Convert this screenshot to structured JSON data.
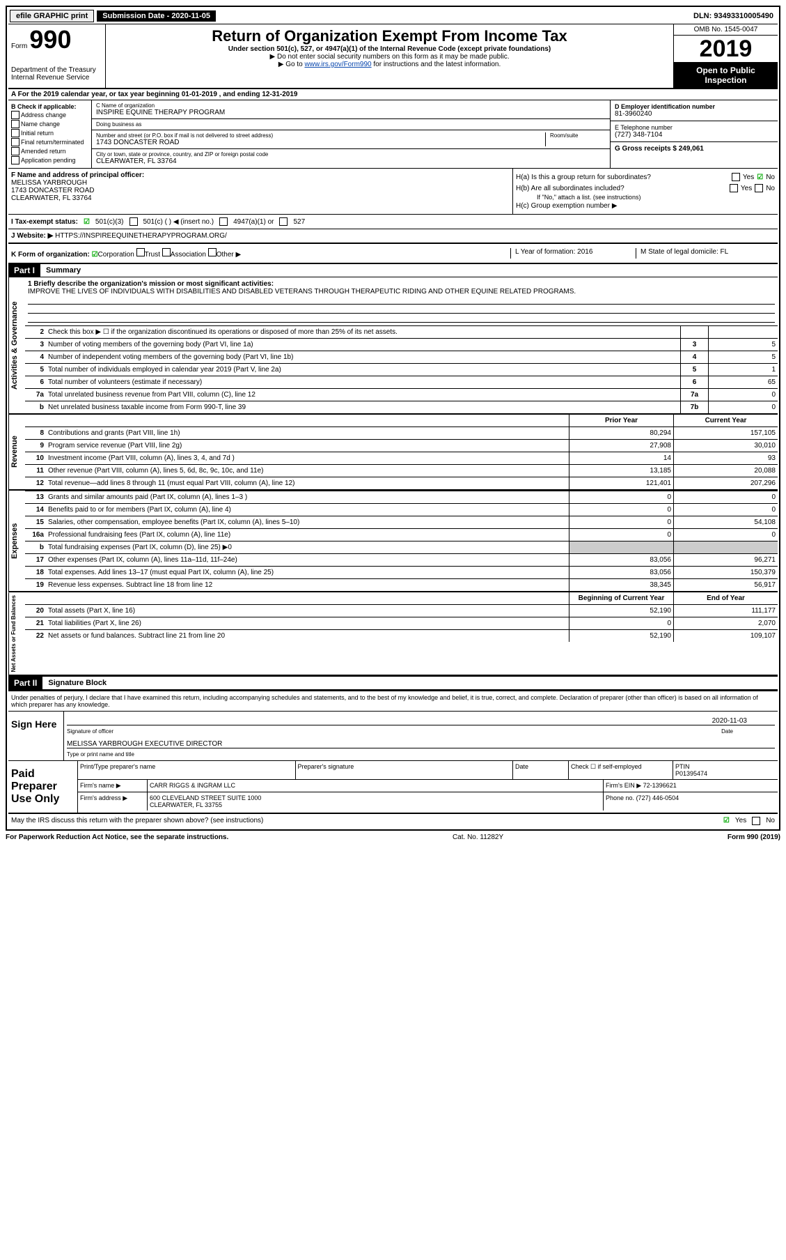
{
  "topbar": {
    "efile": "efile GRAPHIC print",
    "submission_label": "Submission Date - 2020-11-05",
    "dln": "DLN: 93493310005490"
  },
  "header": {
    "form_prefix": "Form",
    "form_number": "990",
    "dept": "Department of the Treasury",
    "irs": "Internal Revenue Service",
    "title": "Return of Organization Exempt From Income Tax",
    "subtitle": "Under section 501(c), 527, or 4947(a)(1) of the Internal Revenue Code (except private foundations)",
    "instr1": "▶ Do not enter social security numbers on this form as it may be made public.",
    "instr2_pre": "▶ Go to ",
    "instr2_link": "www.irs.gov/Form990",
    "instr2_post": " for instructions and the latest information.",
    "omb": "OMB No. 1545-0047",
    "year": "2019",
    "open": "Open to Public Inspection"
  },
  "sectionA": "A For the 2019 calendar year, or tax year beginning 01-01-2019    , and ending 12-31-2019",
  "colB": {
    "label": "B Check if applicable:",
    "items": [
      "Address change",
      "Name change",
      "Initial return",
      "Final return/terminated",
      "Amended return",
      "Application pending"
    ]
  },
  "colC": {
    "name_label": "C Name of organization",
    "name": "INSPIRE EQUINE THERAPY PROGRAM",
    "dba_label": "Doing business as",
    "addr_label": "Number and street (or P.O. box if mail is not delivered to street address)",
    "room_label": "Room/suite",
    "addr": "1743 DONCASTER ROAD",
    "city_label": "City or town, state or province, country, and ZIP or foreign postal code",
    "city": "CLEARWATER, FL  33764"
  },
  "colDE": {
    "d_label": "D Employer identification number",
    "d_val": "81-3960240",
    "e_label": "E Telephone number",
    "e_val": "(727) 348-7104",
    "g_label": "G Gross receipts $ 249,061"
  },
  "rowF": {
    "f_label": "F  Name and address of principal officer:",
    "f_name": "MELISSA YARBROUGH",
    "f_addr1": "1743 DONCASTER ROAD",
    "f_addr2": "CLEARWATER, FL  33764",
    "ha": "H(a)  Is this a group return for subordinates?",
    "hb": "H(b)  Are all subordinates included?",
    "hb_note": "If \"No,\" attach a list. (see instructions)",
    "hc": "H(c)  Group exemption number ▶",
    "yes": "Yes",
    "no": "No"
  },
  "rowI": {
    "label": "I  Tax-exempt status:",
    "c3": "501(c)(3)",
    "c": "501(c) (  ) ◀ (insert no.)",
    "a1": "4947(a)(1) or",
    "s527": "527"
  },
  "rowJ": {
    "label": "J  Website: ▶",
    "val": "HTTPS://INSPIREEQUINETHERAPYPROGRAM.ORG/"
  },
  "rowK": {
    "label": "K Form of organization:",
    "corp": "Corporation",
    "trust": "Trust",
    "assoc": "Association",
    "other": "Other ▶",
    "l_label": "L Year of formation: 2016",
    "m_label": "M State of legal domicile: FL"
  },
  "part1": {
    "header": "Part I",
    "title": "Summary"
  },
  "mission": {
    "label": "1  Briefly describe the organization's mission or most significant activities:",
    "text": "IMPROVE THE LIVES OF INDIVIDUALS WITH DISABILITIES AND DISABLED VETERANS THROUGH THERAPEUTIC RIDING AND OTHER EQUINE RELATED PROGRAMS."
  },
  "gov_lines": [
    {
      "n": "2",
      "d": "Check this box ▶ ☐  if the organization discontinued its operations or disposed of more than 25% of its net assets.",
      "box": "",
      "v": ""
    },
    {
      "n": "3",
      "d": "Number of voting members of the governing body (Part VI, line 1a)",
      "box": "3",
      "v": "5"
    },
    {
      "n": "4",
      "d": "Number of independent voting members of the governing body (Part VI, line 1b)",
      "box": "4",
      "v": "5"
    },
    {
      "n": "5",
      "d": "Total number of individuals employed in calendar year 2019 (Part V, line 2a)",
      "box": "5",
      "v": "1"
    },
    {
      "n": "6",
      "d": "Total number of volunteers (estimate if necessary)",
      "box": "6",
      "v": "65"
    },
    {
      "n": "7a",
      "d": "Total unrelated business revenue from Part VIII, column (C), line 12",
      "box": "7a",
      "v": "0"
    },
    {
      "n": "b",
      "d": "Net unrelated business taxable income from Form 990-T, line 39",
      "box": "7b",
      "v": "0"
    }
  ],
  "col_headers": {
    "prior": "Prior Year",
    "current": "Current Year"
  },
  "revenue": [
    {
      "n": "8",
      "d": "Contributions and grants (Part VIII, line 1h)",
      "p": "80,294",
      "c": "157,105"
    },
    {
      "n": "9",
      "d": "Program service revenue (Part VIII, line 2g)",
      "p": "27,908",
      "c": "30,010"
    },
    {
      "n": "10",
      "d": "Investment income (Part VIII, column (A), lines 3, 4, and 7d )",
      "p": "14",
      "c": "93"
    },
    {
      "n": "11",
      "d": "Other revenue (Part VIII, column (A), lines 5, 6d, 8c, 9c, 10c, and 11e)",
      "p": "13,185",
      "c": "20,088"
    },
    {
      "n": "12",
      "d": "Total revenue—add lines 8 through 11 (must equal Part VIII, column (A), line 12)",
      "p": "121,401",
      "c": "207,296"
    }
  ],
  "expenses": [
    {
      "n": "13",
      "d": "Grants and similar amounts paid (Part IX, column (A), lines 1–3 )",
      "p": "0",
      "c": "0"
    },
    {
      "n": "14",
      "d": "Benefits paid to or for members (Part IX, column (A), line 4)",
      "p": "0",
      "c": "0"
    },
    {
      "n": "15",
      "d": "Salaries, other compensation, employee benefits (Part IX, column (A), lines 5–10)",
      "p": "0",
      "c": "54,108"
    },
    {
      "n": "16a",
      "d": "Professional fundraising fees (Part IX, column (A), line 11e)",
      "p": "0",
      "c": "0"
    },
    {
      "n": "b",
      "d": "Total fundraising expenses (Part IX, column (D), line 25) ▶0",
      "p": "",
      "c": "",
      "shaded": true
    },
    {
      "n": "17",
      "d": "Other expenses (Part IX, column (A), lines 11a–11d, 11f–24e)",
      "p": "83,056",
      "c": "96,271"
    },
    {
      "n": "18",
      "d": "Total expenses. Add lines 13–17 (must equal Part IX, column (A), line 25)",
      "p": "83,056",
      "c": "150,379"
    },
    {
      "n": "19",
      "d": "Revenue less expenses. Subtract line 18 from line 12",
      "p": "38,345",
      "c": "56,917"
    }
  ],
  "net_headers": {
    "begin": "Beginning of Current Year",
    "end": "End of Year"
  },
  "net": [
    {
      "n": "20",
      "d": "Total assets (Part X, line 16)",
      "p": "52,190",
      "c": "111,177"
    },
    {
      "n": "21",
      "d": "Total liabilities (Part X, line 26)",
      "p": "0",
      "c": "2,070"
    },
    {
      "n": "22",
      "d": "Net assets or fund balances. Subtract line 21 from line 20",
      "p": "52,190",
      "c": "109,107"
    }
  ],
  "side": {
    "gov": "Activities & Governance",
    "rev": "Revenue",
    "exp": "Expenses",
    "net": "Net Assets or Fund Balances"
  },
  "part2": {
    "header": "Part II",
    "title": "Signature Block",
    "perjury": "Under penalties of perjury, I declare that I have examined this return, including accompanying schedules and statements, and to the best of my knowledge and belief, it is true, correct, and complete. Declaration of preparer (other than officer) is based on all information of which preparer has any knowledge."
  },
  "sign": {
    "here": "Sign Here",
    "sig_officer": "Signature of officer",
    "date": "Date",
    "date_val": "2020-11-03",
    "name": "MELISSA YARBROUGH  EXECUTIVE DIRECTOR",
    "name_label": "Type or print name and title"
  },
  "preparer": {
    "label": "Paid Preparer Use Only",
    "print_label": "Print/Type preparer's name",
    "sig_label": "Preparer's signature",
    "date_label": "Date",
    "check_label": "Check ☐ if self-employed",
    "ptin_label": "PTIN",
    "ptin": "P01395474",
    "firm_name_label": "Firm's name    ▶",
    "firm_name": "CARR RIGGS & INGRAM LLC",
    "firm_ein_label": "Firm's EIN ▶",
    "firm_ein": "72-1396621",
    "firm_addr_label": "Firm's address ▶",
    "firm_addr1": "600 CLEVELAND STREET SUITE 1000",
    "firm_addr2": "CLEARWATER, FL  33755",
    "phone_label": "Phone no.",
    "phone": "(727) 446-0504"
  },
  "footer": {
    "discuss": "May the IRS discuss this return with the preparer shown above? (see instructions)",
    "yes": "Yes",
    "no": "No",
    "paperwork": "For Paperwork Reduction Act Notice, see the separate instructions.",
    "cat": "Cat. No. 11282Y",
    "form": "Form 990 (2019)"
  }
}
